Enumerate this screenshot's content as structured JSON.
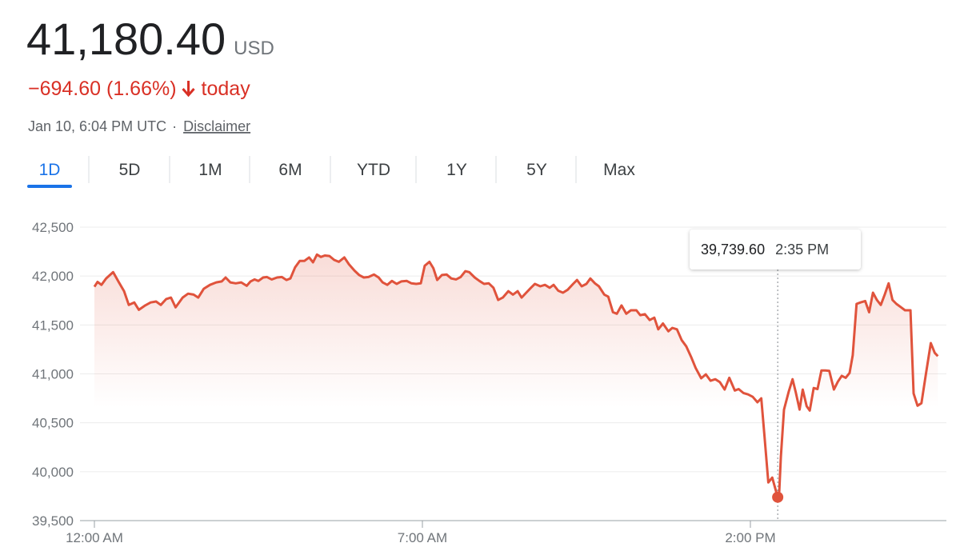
{
  "header": {
    "price": "41,180.40",
    "currency": "USD",
    "change": "−694.60 (1.66%)",
    "change_period": "today",
    "timestamp": "Jan 10, 6:04 PM UTC",
    "disclaimer": "Disclaimer"
  },
  "tabs": [
    "1D",
    "5D",
    "1M",
    "6M",
    "YTD",
    "1Y",
    "5Y",
    "Max"
  ],
  "selected_tab": 0,
  "chart_data": {
    "type": "line",
    "color": "#e0533c",
    "x": [
      0,
      4,
      9,
      15,
      24,
      31,
      38,
      44,
      51,
      57,
      65,
      72,
      79,
      85,
      92,
      98,
      104,
      113,
      120,
      127,
      133,
      140,
      148,
      156,
      163,
      168,
      174,
      181,
      188,
      195,
      200,
      205,
      210,
      216,
      221,
      227,
      234,
      240,
      246,
      251,
      257,
      263,
      269,
      275,
      280,
      285,
      290,
      295,
      301,
      307,
      313,
      320,
      326,
      333,
      339,
      345,
      351,
      358,
      364,
      369,
      375,
      381,
      387,
      393,
      400,
      406,
      412,
      418,
      423,
      429,
      434,
      439,
      445,
      451,
      457,
      463,
      469,
      475,
      480,
      487,
      493,
      499,
      505,
      511,
      517,
      523,
      530,
      536,
      542,
      547,
      553,
      559,
      564,
      571,
      577,
      583,
      588,
      594,
      600,
      606,
      613,
      618,
      624,
      630,
      635,
      641,
      646,
      653,
      658,
      664,
      669,
      675,
      681,
      687,
      694,
      699,
      705,
      711,
      717,
      722,
      728,
      735,
      740,
      746,
      752,
      758,
      764,
      770,
      777,
      783,
      789,
      795,
      801,
      807,
      813,
      820,
      825,
      831,
      837,
      843,
      849,
      854,
      858,
      863,
      868,
      875,
      877,
      879,
      883,
      889,
      894,
      898,
      903,
      907,
      912,
      916,
      921,
      926,
      931,
      936,
      941,
      947,
      952,
      957,
      962,
      967,
      971,
      976,
      981,
      987,
      992,
      997,
      1002,
      1007,
      1012,
      1017,
      1022,
      1027,
      1033,
      1038,
      1045,
      1049,
      1054,
      1059,
      1065,
      1071,
      1076,
      1080
    ],
    "values": [
      41890,
      41940,
      41910,
      41975,
      42040,
      41940,
      41845,
      41705,
      41730,
      41655,
      41700,
      41730,
      41740,
      41705,
      41765,
      41780,
      41680,
      41780,
      41820,
      41810,
      41780,
      41870,
      41910,
      41935,
      41945,
      41985,
      41935,
      41925,
      41935,
      41900,
      41945,
      41965,
      41950,
      41985,
      41990,
      41965,
      41985,
      41990,
      41960,
      41975,
      42090,
      42155,
      42155,
      42190,
      42140,
      42220,
      42195,
      42210,
      42205,
      42165,
      42145,
      42190,
      42120,
      42055,
      42010,
      41985,
      41990,
      42015,
      41985,
      41935,
      41910,
      41950,
      41920,
      41945,
      41950,
      41925,
      41920,
      41925,
      42105,
      42145,
      42080,
      41960,
      42010,
      42015,
      41975,
      41965,
      41990,
      42050,
      42040,
      41985,
      41950,
      41920,
      41925,
      41880,
      41755,
      41780,
      41845,
      41810,
      41845,
      41780,
      41830,
      41880,
      41920,
      41895,
      41910,
      41880,
      41910,
      41850,
      41830,
      41860,
      41920,
      41960,
      41895,
      41920,
      41975,
      41925,
      41895,
      41810,
      41790,
      41630,
      41615,
      41700,
      41615,
      41650,
      41650,
      41600,
      41610,
      41550,
      41575,
      41455,
      41515,
      41435,
      41470,
      41455,
      41345,
      41280,
      41175,
      41060,
      40955,
      40995,
      40930,
      40945,
      40915,
      40840,
      40960,
      40830,
      40845,
      40805,
      40790,
      40765,
      40710,
      40750,
      40365,
      39890,
      39940,
      39739.6,
      39800,
      40155,
      40635,
      40815,
      40945,
      40815,
      40635,
      40840,
      40670,
      40625,
      40855,
      40845,
      41035,
      41035,
      41030,
      40840,
      40920,
      40980,
      40960,
      41010,
      41190,
      41715,
      41730,
      41745,
      41630,
      41830,
      41755,
      41705,
      41810,
      41925,
      41755,
      41715,
      41680,
      41650,
      41650,
      40800,
      40675,
      40700,
      41010,
      41315,
      41215,
      41180.4
    ],
    "xlim": [
      0,
      1091
    ],
    "xticks": [
      {
        "value": 0,
        "label": "12:00 AM"
      },
      {
        "value": 420,
        "label": "7:00 AM"
      },
      {
        "value": 840,
        "label": "2:00 PM"
      }
    ],
    "ylim": [
      39500,
      42500
    ],
    "yticks": [
      {
        "value": 39500,
        "label": "39,500"
      },
      {
        "value": 40000,
        "label": "40,000"
      },
      {
        "value": 40500,
        "label": "40,500"
      },
      {
        "value": 41000,
        "label": "41,000"
      },
      {
        "value": 41500,
        "label": "41,500"
      },
      {
        "value": 42000,
        "label": "42,000"
      },
      {
        "value": 42500,
        "label": "42,500"
      }
    ],
    "grid": true,
    "tooltip": {
      "x": 875,
      "value": 39739.6,
      "label": "39,739.60",
      "time": "2:35 PM"
    }
  }
}
